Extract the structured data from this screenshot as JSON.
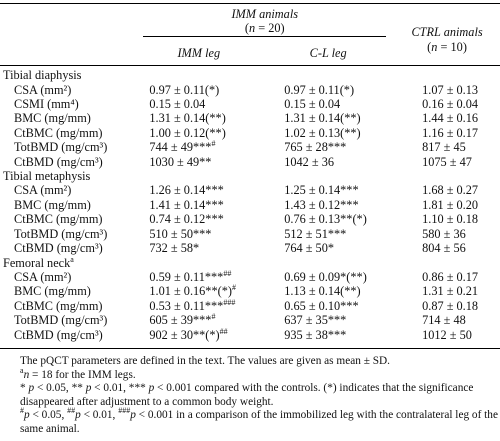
{
  "header": {
    "group": "IMM animals",
    "group_n": [
      {
        "i": "n"
      },
      " = 20)"
    ],
    "group_n_open": "(",
    "col1": "IMM leg",
    "col2": "C-L leg",
    "ctrl": "CTRL animals",
    "ctrl_n": [
      {
        "i": "n"
      },
      " = 10)"
    ],
    "ctrl_n_open": "("
  },
  "sections": [
    {
      "title": "Tibial diaphysis",
      "rows": [
        [
          "CSA (mm²)",
          "0.97 ± 0.11(*)",
          "0.97 ± 0.11(*)",
          "1.07 ± 0.13"
        ],
        [
          "CSMI (mm⁴)",
          "0.15 ± 0.04",
          "0.15 ± 0.04",
          "0.16 ± 0.04"
        ],
        [
          "BMC (mg/mm)",
          "1.31 ± 0.14(**)",
          "1.31 ± 0.14(**)",
          "1.44 ± 0.16"
        ],
        [
          "CtBMC (mg/mm)",
          "1.00 ± 0.12(**)",
          "1.02 ± 0.13(**)",
          "1.16 ± 0.17"
        ],
        [
          "TotBMD (mg/cm³)",
          [
            "744 ± 49***",
            {
              "sup": "#"
            }
          ],
          "765 ± 28***",
          "817 ± 45"
        ],
        [
          "CtBMD (mg/cm³)",
          "1030 ± 49**",
          "1042 ± 36",
          "1075 ± 47"
        ]
      ]
    },
    {
      "title": "Tibial metaphysis",
      "rows": [
        [
          "CSA (mm²)",
          "1.26 ± 0.14***",
          "1.25 ± 0.14***",
          "1.68 ± 0.27"
        ],
        [
          "BMC (mg/mm)",
          "1.41 ± 0.14***",
          "1.43 ± 0.12***",
          "1.81 ± 0.20"
        ],
        [
          "CtBMC (mg/mm)",
          "0.74 ± 0.12***",
          "0.76 ± 0.13**(*)",
          "1.10 ± 0.18"
        ],
        [
          "TotBMD (mg/cm³)",
          "510 ± 50***",
          "512 ± 51***",
          "580 ± 36"
        ],
        [
          "CtBMD (mg/cm³)",
          "732 ± 58*",
          "764 ± 50*",
          "804 ± 56"
        ]
      ]
    },
    {
      "title": [
        "Femoral neck",
        {
          "sup": "a"
        }
      ],
      "rows": [
        [
          "CSA (mm²)",
          [
            "0.59 ± 0.11***",
            {
              "sup": "##"
            }
          ],
          "0.69 ± 0.09*(**)",
          "0.86 ± 0.17"
        ],
        [
          "BMC (mg/mm)",
          [
            "1.01 ± 0.16**(*)",
            {
              "sup": "#"
            }
          ],
          "1.13 ± 0.14(**)",
          "1.31 ± 0.21"
        ],
        [
          "CtBMC (mg/mm)",
          [
            "0.53 ± 0.11***",
            {
              "sup": "###"
            }
          ],
          "0.65 ± 0.10***",
          "0.87 ± 0.18"
        ],
        [
          "TotBMD (mg/cm³)",
          [
            "605 ± 39***",
            {
              "sup": "#"
            }
          ],
          "637 ± 35***",
          "714 ± 48"
        ],
        [
          "CtBMD (mg/cm³)",
          [
            "902 ± 30**(*)",
            {
              "sup": "##"
            }
          ],
          "935 ± 38***",
          "1012 ± 50"
        ]
      ]
    }
  ],
  "footnotes": [
    "The pQCT parameters are defined in the text. The values are given as mean ± SD.",
    [
      {
        "sup": "a"
      },
      {
        "i": "n"
      },
      " = 18 for the IMM legs."
    ],
    [
      "* ",
      {
        "i": "p"
      },
      " < 0.05, ** ",
      {
        "i": "p"
      },
      " < 0.01, *** ",
      {
        "i": "p"
      },
      " < 0.001 compared with the controls. (*) indicates that the significance disappeared after adjustment to a common body weight."
    ],
    [
      {
        "sup": "#"
      },
      {
        "i": "p"
      },
      " < 0.05, ",
      {
        "sup": "##"
      },
      {
        "i": "p"
      },
      " < 0.01, ",
      {
        "sup": "###"
      },
      {
        "i": "p"
      },
      " < 0.001 in a comparison of the immobilized leg with the contralateral leg of the same animal."
    ]
  ]
}
